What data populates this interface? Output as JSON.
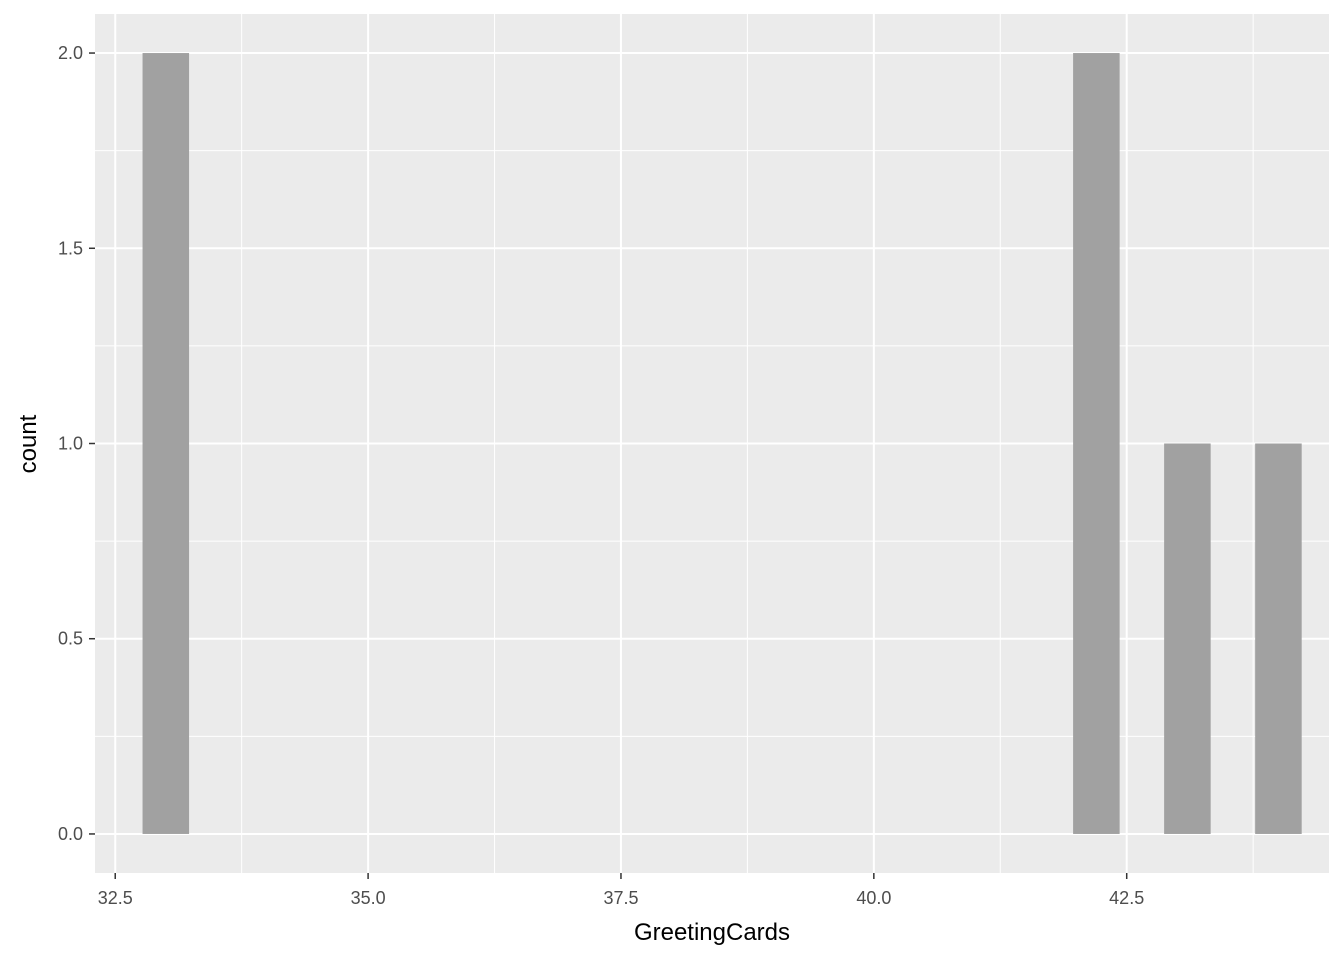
{
  "chart_data": {
    "type": "bar",
    "xlabel": "GreetingCards",
    "ylabel": "count",
    "xlim": [
      32.3,
      44.5
    ],
    "ylim": [
      -0.1,
      2.1
    ],
    "x_ticks": [
      32.5,
      35.0,
      37.5,
      40.0,
      42.5
    ],
    "x_tick_labels": [
      "32.5",
      "35.0",
      "37.5",
      "40.0",
      "42.5"
    ],
    "y_ticks": [
      0.0,
      0.5,
      1.0,
      1.5,
      2.0
    ],
    "y_tick_labels": [
      "0.0",
      "0.5",
      "1.0",
      "1.5",
      "2.0"
    ],
    "bin_width": 0.46,
    "bins": [
      {
        "x": 33.0,
        "count": 2
      },
      {
        "x": 42.2,
        "count": 2
      },
      {
        "x": 43.1,
        "count": 1
      },
      {
        "x": 44.0,
        "count": 1
      }
    ],
    "grid": true,
    "colors": {
      "panel": "#ebebeb",
      "grid": "#ffffff",
      "bar": "#a1a1a1"
    }
  }
}
